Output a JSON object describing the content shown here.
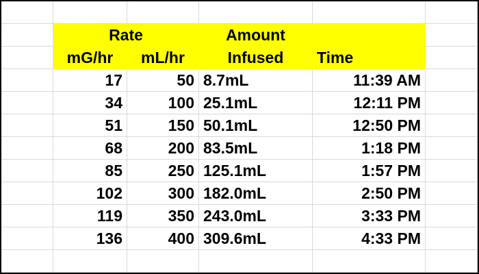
{
  "header": {
    "row1": {
      "rate": "Rate",
      "amount": "Amount"
    },
    "row2": [
      "mG/hr",
      "mL/hr",
      "Infused",
      "Time"
    ]
  },
  "table": {
    "rows": [
      [
        "17",
        "50",
        "8.7mL",
        "11:39 AM"
      ],
      [
        "34",
        "100",
        "25.1mL",
        "12:11 PM"
      ],
      [
        "51",
        "150",
        "50.1mL",
        "12:50 PM"
      ],
      [
        "68",
        "200",
        "83.5mL",
        "1:18 PM"
      ],
      [
        "85",
        "250",
        "125.1mL",
        "1:57 PM"
      ],
      [
        "102",
        "300",
        "182.0mL",
        "2:50 PM"
      ],
      [
        "119",
        "350",
        "243.0mL",
        "3:33 PM"
      ],
      [
        "136",
        "400",
        "309.6mL",
        "4:33 PM"
      ]
    ]
  }
}
